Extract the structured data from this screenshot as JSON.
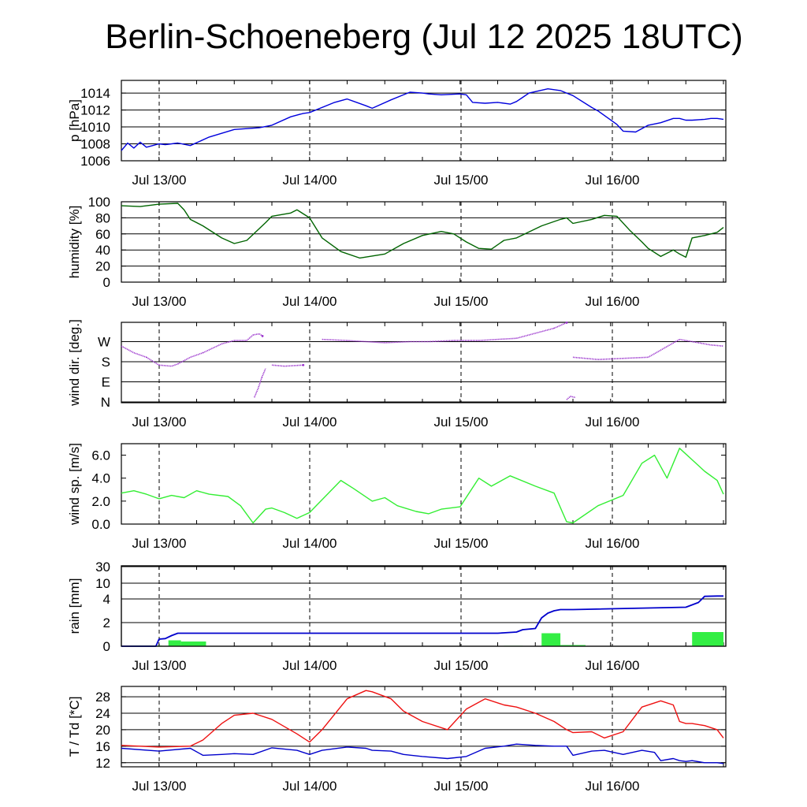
{
  "title": "Berlin-Schoeneberg (Jul 12 2025 18UTC)",
  "colors": {
    "pressure": "#0000dd",
    "humidity": "#006400",
    "wind_dir": "#9932cc",
    "wind_speed": "#33ee33",
    "rain_bar": "#33ee44",
    "rain_cum": "#0000cc",
    "temperature": "#ee1111",
    "dewpoint": "#0000cc"
  },
  "chart_data": [
    {
      "type": "line",
      "ylabel": "p [hPa]",
      "x_days": [
        "Jul 13/00",
        "Jul 14/00",
        "Jul 15/00",
        "Jul 16/00"
      ],
      "x_hours_range": [
        0,
        96
      ],
      "ylim": [
        1006,
        1015.5
      ],
      "yticks": [
        1006,
        1008,
        1010,
        1012,
        1014
      ],
      "grid": true,
      "series": [
        {
          "x": [
            0,
            1,
            2,
            3,
            4,
            5,
            6,
            7,
            9,
            11,
            14,
            18,
            22,
            24,
            27,
            29,
            30,
            34,
            36,
            39,
            40,
            43,
            46,
            48,
            49,
            51,
            54,
            55,
            56,
            58,
            60,
            62,
            63,
            64,
            65,
            68,
            70,
            71,
            72,
            75,
            76,
            79,
            80,
            82,
            84,
            86,
            88,
            89,
            90,
            91,
            93,
            94,
            95,
            96
          ],
          "y": [
            1007.2,
            1008.1,
            1007.5,
            1008.2,
            1007.6,
            1007.8,
            1008.0,
            1007.9,
            1008.1,
            1007.8,
            1008.8,
            1009.7,
            1009.9,
            1010.2,
            1011.2,
            1011.6,
            1011.7,
            1012.9,
            1013.3,
            1012.5,
            1012.2,
            1013.2,
            1014.1,
            1014.0,
            1013.9,
            1013.8,
            1013.9,
            1013.8,
            1012.9,
            1012.8,
            1012.9,
            1012.7,
            1013.0,
            1013.5,
            1014.0,
            1014.5,
            1014.3,
            1014.0,
            1013.7,
            1012.3,
            1011.9,
            1010.3,
            1009.5,
            1009.4,
            1010.2,
            1010.5,
            1011.0,
            1011.0,
            1010.8,
            1010.8,
            1010.9,
            1011.0,
            1011.0,
            1010.9
          ]
        }
      ]
    },
    {
      "type": "line",
      "ylabel": "humidity [%]",
      "x_days": [
        "Jul 13/00",
        "Jul 14/00",
        "Jul 15/00",
        "Jul 16/00"
      ],
      "x_hours_range": [
        0,
        96
      ],
      "ylim": [
        0,
        100
      ],
      "yticks": [
        0,
        20,
        40,
        60,
        80,
        100
      ],
      "grid": true,
      "series": [
        {
          "x": [
            0,
            3,
            6,
            9,
            10,
            11,
            13,
            16,
            18,
            20,
            23,
            24,
            27,
            28,
            30,
            32,
            35,
            38,
            42,
            45,
            48,
            51,
            53,
            55,
            57,
            59,
            61,
            63,
            67,
            70,
            71,
            72,
            75,
            77,
            79,
            81,
            83,
            84,
            86,
            88,
            89,
            90,
            91,
            93,
            95,
            96
          ],
          "y": [
            95,
            94,
            97,
            98,
            90,
            78,
            70,
            55,
            48,
            52,
            74,
            82,
            86,
            90,
            80,
            55,
            38,
            30,
            35,
            48,
            58,
            63,
            60,
            50,
            42,
            41,
            52,
            55,
            70,
            78,
            80,
            73,
            78,
            83,
            82,
            65,
            50,
            42,
            32,
            40,
            35,
            31,
            55,
            58,
            62,
            68
          ]
        }
      ]
    },
    {
      "type": "scatter",
      "ylabel": "wind dir. [deg.]",
      "x_days": [
        "Jul 13/00",
        "Jul 14/00",
        "Jul 15/00",
        "Jul 16/00"
      ],
      "x_hours_range": [
        0,
        96
      ],
      "ylim": [
        0,
        360
      ],
      "yticks": [
        0,
        90,
        180,
        270
      ],
      "ytick_labels": [
        "N",
        "E",
        "S",
        "W"
      ],
      "grid": true,
      "series": [
        {
          "x": [
            0,
            2,
            4,
            6,
            8,
            9,
            11,
            13,
            16,
            18,
            20,
            21,
            22,
            22.5,
            24,
            26,
            29,
            32,
            36,
            42,
            46,
            49,
            53,
            57,
            63,
            69,
            71,
            72,
            76,
            80,
            84,
            89,
            94,
            96
          ],
          "y": [
            250,
            220,
            200,
            165,
            160,
            170,
            200,
            220,
            260,
            275,
            275,
            300,
            305,
            295,
            165,
            160,
            165,
            280,
            275,
            265,
            270,
            270,
            275,
            275,
            285,
            330,
            355,
            200,
            190,
            195,
            200,
            280,
            255,
            250
          ]
        },
        {
          "x": [
            21.2,
            21.8,
            22.4,
            23.0
          ],
          "y": [
            20,
            60,
            110,
            150
          ]
        },
        {
          "x": [
            71.0,
            71.6,
            72.4
          ],
          "y": [
            10,
            25,
            20
          ]
        }
      ]
    },
    {
      "type": "line",
      "ylabel": "wind sp. [m/s]",
      "x_days": [
        "Jul 13/00",
        "Jul 14/00",
        "Jul 15/00",
        "Jul 16/00"
      ],
      "x_hours_range": [
        0,
        96
      ],
      "ylim": [
        0,
        7
      ],
      "yticks": [
        0.0,
        2.0,
        4.0,
        6.0
      ],
      "grid": false,
      "series": [
        {
          "x": [
            0,
            2,
            4,
            6,
            8,
            10,
            12,
            14,
            17,
            19,
            21,
            23,
            24,
            26,
            28,
            30,
            35,
            37,
            40,
            42,
            44,
            47,
            49,
            51,
            54,
            57,
            59,
            62,
            66,
            69,
            71,
            72,
            76,
            80,
            83,
            85,
            87,
            89,
            91,
            93,
            95,
            96
          ],
          "y": [
            2.7,
            2.9,
            2.6,
            2.2,
            2.5,
            2.3,
            2.9,
            2.6,
            2.4,
            1.6,
            0.1,
            1.3,
            1.4,
            1.0,
            0.5,
            1.0,
            3.8,
            3.1,
            2.0,
            2.3,
            1.6,
            1.1,
            0.9,
            1.3,
            1.5,
            4.0,
            3.3,
            4.2,
            3.3,
            2.7,
            0.2,
            0.1,
            1.6,
            2.5,
            5.3,
            6.0,
            4.0,
            6.6,
            5.6,
            4.6,
            3.8,
            2.6
          ]
        }
      ]
    },
    {
      "type": "bar",
      "ylabel": "rain [mm]",
      "x_days": [
        "Jul 13/00",
        "Jul 14/00",
        "Jul 15/00",
        "Jul 16/00"
      ],
      "x_hours_range": [
        0,
        96
      ],
      "yticks": [
        0,
        2,
        4,
        10,
        30
      ],
      "grid": true,
      "bars": {
        "x_start": [
          1.5,
          7.5,
          9.5,
          61,
          67,
          70,
          91
        ],
        "x_end": [
          6.5,
          9.5,
          13.5,
          64,
          70,
          74,
          96
        ],
        "values": [
          0.05,
          0.5,
          0.4,
          0.04,
          1.1,
          0.1,
          1.2
        ]
      },
      "cumulative": {
        "x": [
          0,
          5.5,
          6,
          7,
          8,
          9,
          60,
          63,
          64,
          66,
          67,
          68,
          69,
          70,
          72,
          90,
          92,
          93,
          95,
          96
        ],
        "y": [
          0,
          0,
          0.6,
          0.65,
          0.9,
          1.1,
          1.1,
          1.2,
          1.4,
          1.5,
          2.4,
          2.8,
          3.0,
          3.1,
          3.1,
          3.3,
          3.7,
          5.0,
          5.1,
          5.1
        ]
      }
    },
    {
      "type": "line",
      "ylabel": "T / Td [*C]",
      "x_days": [
        "Jul 13/00",
        "Jul 14/00",
        "Jul 15/00",
        "Jul 16/00"
      ],
      "x_hours_range": [
        0,
        96
      ],
      "ylim": [
        11,
        30.5
      ],
      "yticks": [
        12,
        16,
        20,
        24,
        28
      ],
      "grid": true,
      "series": [
        {
          "x": [
            0,
            6,
            11,
            13,
            16,
            18,
            21,
            24,
            28,
            30,
            32,
            36,
            39,
            40,
            43,
            45,
            48,
            52,
            55,
            58,
            61,
            63,
            66,
            69,
            71,
            72,
            75,
            77,
            80,
            83,
            85,
            86,
            88,
            89,
            90,
            91,
            93,
            95,
            96
          ],
          "y": [
            16.2,
            15.8,
            16.0,
            17.5,
            21.5,
            23.5,
            24.0,
            22.5,
            19.0,
            17.0,
            20.0,
            27.5,
            29.5,
            29.2,
            27.5,
            24.5,
            22.0,
            20.0,
            25.0,
            27.5,
            26.0,
            25.5,
            24.0,
            22.0,
            20.0,
            19.3,
            19.5,
            18.0,
            19.5,
            25.5,
            26.5,
            27.0,
            26.0,
            22.0,
            21.5,
            21.5,
            21.0,
            20.0,
            18.0
          ]
        },
        {
          "x": [
            0,
            6,
            11,
            13,
            16,
            18,
            21,
            24,
            28,
            30,
            32,
            36,
            39,
            40,
            43,
            45,
            48,
            52,
            55,
            58,
            61,
            63,
            66,
            69,
            71,
            72,
            75,
            77,
            80,
            83,
            85,
            86,
            88,
            89,
            90,
            91,
            93,
            95,
            96
          ],
          "y": [
            15.5,
            14.8,
            15.5,
            13.8,
            14.0,
            14.2,
            14.0,
            15.6,
            15.0,
            14.0,
            15.0,
            15.8,
            15.5,
            15.0,
            14.8,
            14.0,
            13.5,
            13.0,
            13.5,
            15.5,
            16.0,
            16.5,
            16.2,
            16.0,
            16.0,
            13.8,
            14.8,
            15.0,
            14.0,
            15.0,
            14.5,
            12.5,
            13.0,
            12.5,
            12.3,
            12.5,
            12.0,
            12.0,
            11.8
          ]
        }
      ]
    }
  ]
}
